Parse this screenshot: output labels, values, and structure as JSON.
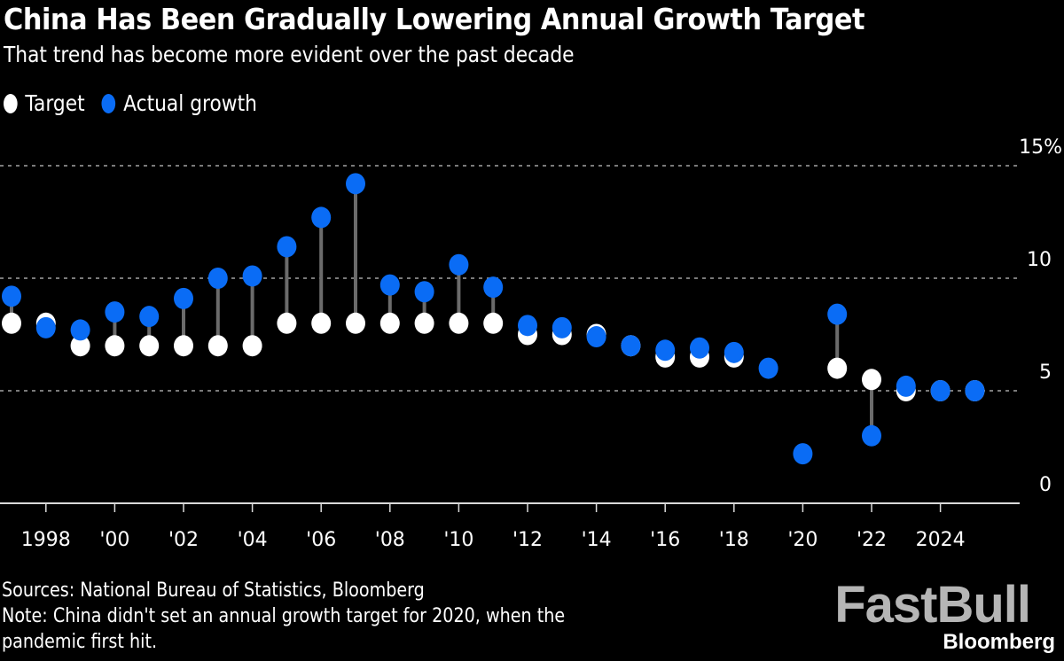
{
  "header": {
    "title": "China Has Been Gradually Lowering Annual Growth Target",
    "subtitle": "That trend has become more evident over the past decade"
  },
  "legend": [
    {
      "label": "Target",
      "color": "#ffffff"
    },
    {
      "label": "Actual growth",
      "color": "#0a6cf5"
    }
  ],
  "footer": {
    "sources": "Sources: National Bureau of Statistics, Bloomberg",
    "note_line1": "Note: China didn't set an annual growth target for 2020, when the",
    "note_line2": "pandemic first hit."
  },
  "logo": {
    "main": "FastBull",
    "sub": "Bloomberg"
  },
  "chart_data": {
    "type": "scatter",
    "subtype": "dumbbell",
    "title": "China Has Been Gradually Lowering Annual Growth Target",
    "subtitle": "That trend has become more evident over the past decade",
    "xlabel": "",
    "ylabel": "",
    "ylim": [
      0,
      15
    ],
    "yticks": [
      {
        "value": 15,
        "label": "15%"
      },
      {
        "value": 10,
        "label": "10"
      },
      {
        "value": 5,
        "label": "5"
      },
      {
        "value": 0,
        "label": "0"
      }
    ],
    "gridlines": [
      15,
      10,
      5
    ],
    "grid": true,
    "legend_position": "top-left",
    "x": [
      1997,
      1998,
      1999,
      2000,
      2001,
      2002,
      2003,
      2004,
      2005,
      2006,
      2007,
      2008,
      2009,
      2010,
      2011,
      2012,
      2013,
      2014,
      2015,
      2016,
      2017,
      2018,
      2019,
      2020,
      2021,
      2022,
      2023,
      2024,
      2025
    ],
    "xticks": [
      {
        "value": 1998,
        "label": "1998"
      },
      {
        "value": 2000,
        "label": "'00"
      },
      {
        "value": 2002,
        "label": "'02"
      },
      {
        "value": 2004,
        "label": "'04"
      },
      {
        "value": 2006,
        "label": "'06"
      },
      {
        "value": 2008,
        "label": "'08"
      },
      {
        "value": 2010,
        "label": "'10"
      },
      {
        "value": 2012,
        "label": "'12"
      },
      {
        "value": 2014,
        "label": "'14"
      },
      {
        "value": 2016,
        "label": "'16"
      },
      {
        "value": 2018,
        "label": "'18"
      },
      {
        "value": 2020,
        "label": "'20"
      },
      {
        "value": 2022,
        "label": "'22"
      },
      {
        "value": 2024,
        "label": "2024"
      }
    ],
    "xlim": [
      1996.7,
      2026.9
    ],
    "series": [
      {
        "name": "Target",
        "color": "#ffffff",
        "values": [
          8,
          8,
          7,
          7,
          7,
          7,
          7,
          7,
          8,
          8,
          8,
          8,
          8,
          8,
          8,
          7.5,
          7.5,
          7.5,
          7,
          6.5,
          6.5,
          6.5,
          null,
          null,
          6,
          5.5,
          5,
          5,
          5
        ]
      },
      {
        "name": "Actual growth",
        "color": "#0a6cf5",
        "values": [
          9.2,
          7.8,
          7.7,
          8.5,
          8.3,
          9.1,
          10.0,
          10.1,
          11.4,
          12.7,
          14.2,
          9.7,
          9.4,
          10.6,
          9.6,
          7.9,
          7.8,
          7.4,
          7.0,
          6.8,
          6.9,
          6.7,
          6.0,
          2.2,
          8.4,
          3.0,
          5.2,
          5.0,
          5.0
        ]
      }
    ],
    "connector_color": "#6b6b6b",
    "gridline_color": "#7a7a7a",
    "axis_color": "#d9d9d9"
  }
}
